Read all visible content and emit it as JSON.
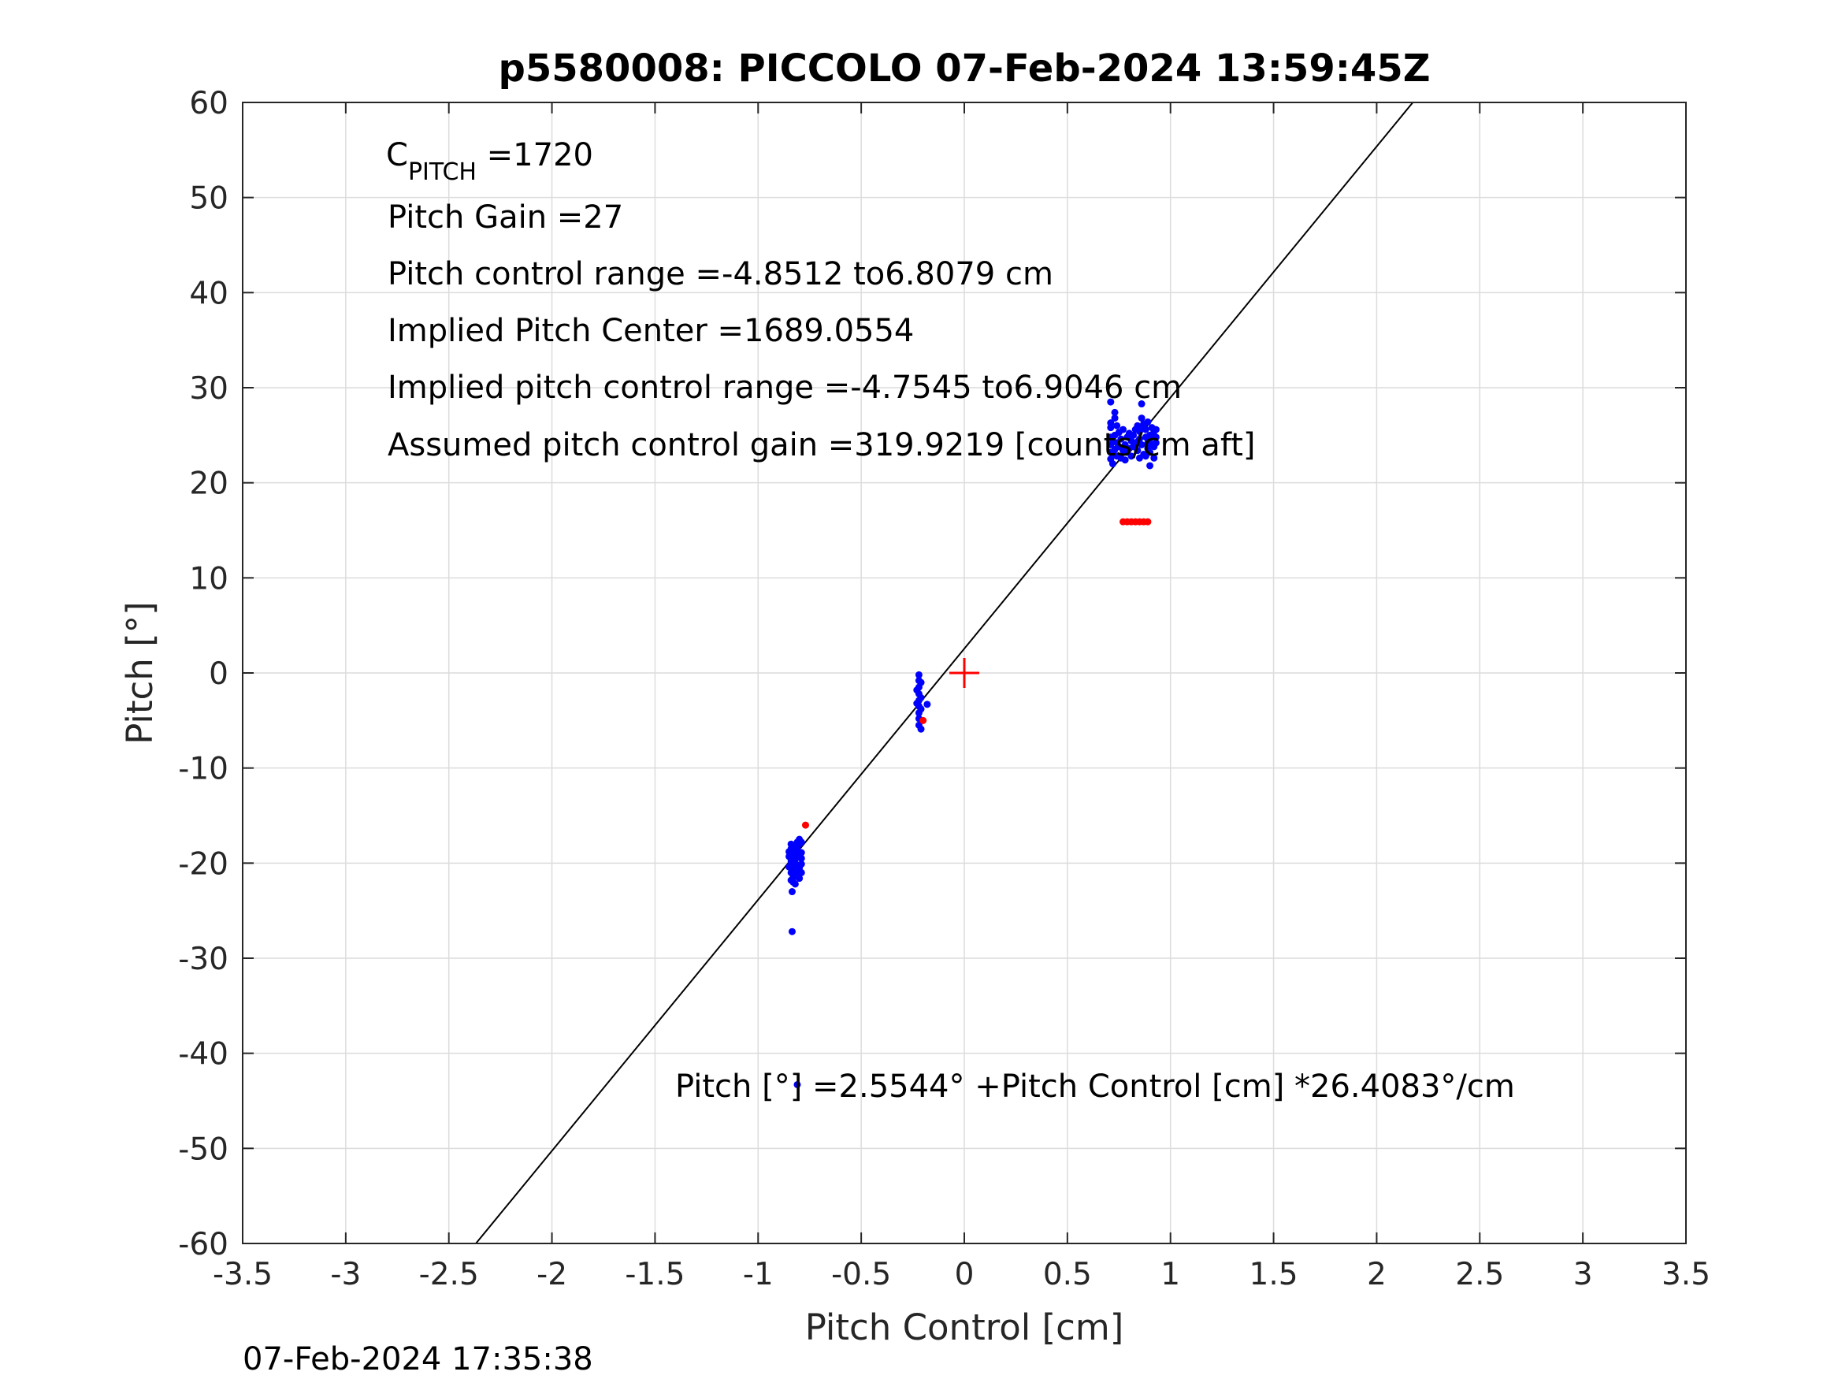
{
  "chart_data": {
    "type": "scatter",
    "title": "p5580008: PICCOLO 07-Feb-2024 13:59:45Z",
    "xlabel": "Pitch Control [cm]",
    "ylabel": "Pitch [°]",
    "xlim": [
      -3.5,
      3.5
    ],
    "ylim": [
      -60,
      60
    ],
    "grid": true,
    "xticks": [
      -3.5,
      -3,
      -2.5,
      -2,
      -1.5,
      -1,
      -0.5,
      0,
      0.5,
      1,
      1.5,
      2,
      2.5,
      3,
      3.5
    ],
    "xtick_labels": [
      "-3.5",
      "-3",
      "-2.5",
      "-2",
      "-1.5",
      "-1",
      "-0.5",
      "0",
      "0.5",
      "1",
      "1.5",
      "2",
      "2.5",
      "3",
      "3.5"
    ],
    "yticks": [
      -60,
      -50,
      -40,
      -30,
      -20,
      -10,
      0,
      10,
      20,
      30,
      40,
      50,
      60
    ],
    "ytick_labels": [
      "-60",
      "-50",
      "-40",
      "-30",
      "-20",
      "-10",
      "0",
      "10",
      "20",
      "30",
      "40",
      "50",
      "60"
    ],
    "annotations": {
      "c_pitch_main": "C",
      "c_pitch_sub": "PITCH",
      "c_pitch_value": " =1720",
      "pitch_gain": "Pitch Gain =27",
      "pitch_control_range": "Pitch control range =-4.8512 to6.8079 cm",
      "implied_pitch_center": "Implied Pitch Center =1689.0554",
      "implied_pitch_control_range": "Implied pitch control range =-4.7545 to6.9046 cm",
      "assumed_gain": "Assumed pitch control gain =319.9219 [counts/cm aft]",
      "fit_equation": "Pitch [°] =2.5544° +Pitch Control [cm] *26.4083°/cm"
    },
    "fit_line": {
      "intercept": 2.5544,
      "slope": 26.4083
    },
    "center_marker": {
      "x": 0,
      "y": 0
    },
    "colors": {
      "good": "#0000ff",
      "bad": "#ff0000",
      "fit": "#000000",
      "center": "#ff0000"
    },
    "series": [
      {
        "color": "#0000ff",
        "points": [
          [
            -0.84,
            -18.5
          ],
          [
            -0.84,
            -19.2
          ],
          [
            -0.84,
            -20.1
          ],
          [
            -0.84,
            -21.0
          ],
          [
            -0.84,
            -21.8
          ],
          [
            -0.84,
            -18.0
          ],
          [
            -0.84,
            -19.8
          ],
          [
            -0.83,
            -18.3
          ],
          [
            -0.83,
            -19.5
          ],
          [
            -0.83,
            -20.6
          ],
          [
            -0.83,
            -21.5
          ],
          [
            -0.83,
            -22.0
          ],
          [
            -0.83,
            -19.0
          ],
          [
            -0.82,
            -18.8
          ],
          [
            -0.82,
            -20.0
          ],
          [
            -0.82,
            -21.2
          ],
          [
            -0.82,
            -22.2
          ],
          [
            -0.82,
            -18.2
          ],
          [
            -0.82,
            -19.6
          ],
          [
            -0.81,
            -19.0
          ],
          [
            -0.81,
            -20.3
          ],
          [
            -0.81,
            -21.4
          ],
          [
            -0.81,
            -18.5
          ],
          [
            -0.81,
            -17.8
          ],
          [
            -0.81,
            -20.8
          ],
          [
            -0.8,
            -18.0
          ],
          [
            -0.8,
            -19.4
          ],
          [
            -0.8,
            -20.5
          ],
          [
            -0.8,
            -21.6
          ],
          [
            -0.8,
            -17.5
          ],
          [
            -0.8,
            -19.0
          ],
          [
            -0.79,
            -17.8
          ],
          [
            -0.79,
            -18.9
          ],
          [
            -0.79,
            -20.1
          ],
          [
            -0.79,
            -21.0
          ],
          [
            -0.79,
            -19.5
          ],
          [
            -0.85,
            -19.3
          ],
          [
            -0.85,
            -20.4
          ],
          [
            -0.85,
            -18.8
          ],
          [
            -0.835,
            -23.0
          ],
          [
            -0.835,
            -27.2
          ],
          [
            -0.81,
            -43.3
          ],
          [
            -0.22,
            -0.2
          ],
          [
            -0.22,
            -0.8
          ],
          [
            -0.22,
            -1.5
          ],
          [
            -0.22,
            -2.2
          ],
          [
            -0.22,
            -2.9
          ],
          [
            -0.22,
            -3.5
          ],
          [
            -0.22,
            -4.2
          ],
          [
            -0.22,
            -4.8
          ],
          [
            -0.22,
            -5.5
          ],
          [
            -0.21,
            -1.0
          ],
          [
            -0.21,
            -2.6
          ],
          [
            -0.21,
            -3.8
          ],
          [
            -0.21,
            -5.9
          ],
          [
            -0.23,
            -1.8
          ],
          [
            -0.23,
            -3.2
          ],
          [
            -0.18,
            -3.3
          ],
          [
            0.71,
            22.5
          ],
          [
            0.71,
            23.2
          ],
          [
            0.71,
            24.0
          ],
          [
            0.71,
            24.8
          ],
          [
            0.71,
            25.8
          ],
          [
            0.71,
            26.3
          ],
          [
            0.71,
            28.5
          ],
          [
            0.72,
            23.0
          ],
          [
            0.72,
            24.5
          ],
          [
            0.72,
            22.0
          ],
          [
            0.73,
            23.5
          ],
          [
            0.73,
            25.0
          ],
          [
            0.73,
            26.8
          ],
          [
            0.73,
            27.4
          ],
          [
            0.74,
            22.8
          ],
          [
            0.74,
            24.2
          ],
          [
            0.74,
            26.0
          ],
          [
            0.75,
            23.8
          ],
          [
            0.75,
            25.3
          ],
          [
            0.76,
            22.6
          ],
          [
            0.76,
            24.6
          ],
          [
            0.77,
            23.4
          ],
          [
            0.77,
            25.6
          ],
          [
            0.78,
            24.0
          ],
          [
            0.78,
            22.4
          ],
          [
            0.79,
            24.8
          ],
          [
            0.79,
            23.2
          ],
          [
            0.8,
            25.2
          ],
          [
            0.8,
            23.6
          ],
          [
            0.81,
            24.4
          ],
          [
            0.81,
            22.8
          ],
          [
            0.82,
            25.0
          ],
          [
            0.82,
            23.8
          ],
          [
            0.83,
            24.2
          ],
          [
            0.83,
            25.6
          ],
          [
            0.84,
            23.4
          ],
          [
            0.84,
            26.0
          ],
          [
            0.85,
            24.6
          ],
          [
            0.85,
            25.4
          ],
          [
            0.85,
            22.6
          ],
          [
            0.86,
            26.8
          ],
          [
            0.86,
            28.3
          ],
          [
            0.86,
            24.0
          ],
          [
            0.87,
            25.8
          ],
          [
            0.87,
            23.0
          ],
          [
            0.87,
            26.2
          ],
          [
            0.88,
            24.8
          ],
          [
            0.88,
            25.6
          ],
          [
            0.88,
            22.8
          ],
          [
            0.89,
            24.2
          ],
          [
            0.89,
            26.4
          ],
          [
            0.89,
            23.6
          ],
          [
            0.9,
            25.0
          ],
          [
            0.9,
            23.2
          ],
          [
            0.9,
            21.8
          ],
          [
            0.9,
            24.6
          ],
          [
            0.91,
            25.8
          ],
          [
            0.91,
            24.0
          ],
          [
            0.92,
            25.4
          ],
          [
            0.92,
            23.8
          ],
          [
            0.92,
            22.6
          ],
          [
            0.93,
            24.8
          ],
          [
            0.93,
            25.6
          ],
          [
            0.93,
            24.2
          ]
        ]
      },
      {
        "color": "#ff0000",
        "points": [
          [
            -0.77,
            -16.0
          ],
          [
            -0.2,
            -5.0
          ],
          [
            0.77,
            15.9
          ],
          [
            0.79,
            15.9
          ],
          [
            0.81,
            15.9
          ],
          [
            0.83,
            15.9
          ],
          [
            0.85,
            15.9
          ],
          [
            0.87,
            15.9
          ],
          [
            0.89,
            15.9
          ]
        ]
      }
    ]
  },
  "footer": {
    "timestamp": "07-Feb-2024 17:35:38"
  }
}
